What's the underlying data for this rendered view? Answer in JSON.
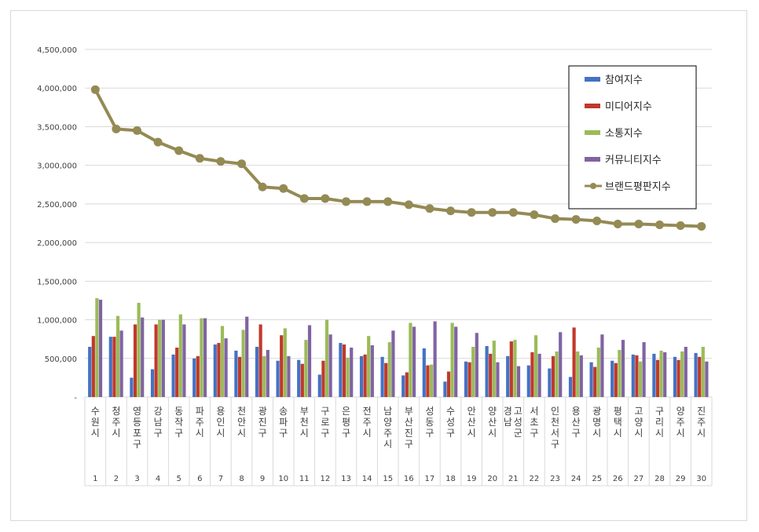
{
  "chart_data": {
    "type": "bar",
    "title": "",
    "xlabel": "",
    "ylabel": "",
    "ylim": [
      0,
      4500000
    ],
    "yticks": [
      0,
      500000,
      1000000,
      1500000,
      2000000,
      2500000,
      3000000,
      3500000,
      4000000,
      4500000
    ],
    "ytick_labels": [
      "-",
      "500,000",
      "1,000,000",
      "1,500,000",
      "2,000,000",
      "2,500,000",
      "3,000,000",
      "3,500,000",
      "4,000,000",
      "4,500,000"
    ],
    "grid": true,
    "legend_position": "top-right",
    "ranks": [
      "1",
      "2",
      "3",
      "4",
      "5",
      "6",
      "7",
      "8",
      "9",
      "10",
      "11",
      "12",
      "13",
      "14",
      "15",
      "16",
      "17",
      "18",
      "19",
      "20",
      "21",
      "22",
      "23",
      "24",
      "25",
      "26",
      "27",
      "28",
      "29",
      "30"
    ],
    "categories": [
      "수원시",
      "청주시",
      "영등포구",
      "강남구",
      "동작구",
      "파주시",
      "용인시",
      "천안시",
      "광진구",
      "송파구",
      "부천시",
      "구로구",
      "은평구",
      "전주시",
      "남양주시",
      "부산진구",
      "성동구",
      "수성구",
      "안산시",
      "양산시",
      "고성군경남",
      "서초구",
      "인천서구",
      "용산구",
      "광명시",
      "평택시",
      "고양시",
      "구리시",
      "양주시",
      "진주시"
    ],
    "series": [
      {
        "name": "참여지수",
        "type": "bar",
        "color": "#4472c4",
        "values": [
          650000,
          780000,
          250000,
          360000,
          550000,
          500000,
          680000,
          600000,
          650000,
          470000,
          480000,
          290000,
          700000,
          530000,
          520000,
          280000,
          630000,
          200000,
          460000,
          660000,
          530000,
          410000,
          370000,
          260000,
          450000,
          470000,
          550000,
          560000,
          520000,
          570000
        ]
      },
      {
        "name": "미디어지수",
        "type": "bar",
        "color": "#c0392b",
        "values": [
          790000,
          780000,
          940000,
          940000,
          640000,
          530000,
          700000,
          520000,
          940000,
          800000,
          430000,
          470000,
          680000,
          550000,
          440000,
          320000,
          410000,
          330000,
          450000,
          560000,
          720000,
          580000,
          530000,
          900000,
          390000,
          440000,
          540000,
          480000,
          480000,
          520000
        ]
      },
      {
        "name": "소통지수",
        "type": "bar",
        "color": "#9bbb59",
        "values": [
          1280000,
          1050000,
          1220000,
          1000000,
          1070000,
          1020000,
          920000,
          870000,
          530000,
          890000,
          740000,
          1000000,
          510000,
          790000,
          710000,
          960000,
          420000,
          960000,
          650000,
          730000,
          740000,
          800000,
          590000,
          590000,
          640000,
          610000,
          460000,
          600000,
          590000,
          650000
        ]
      },
      {
        "name": "커뮤니티지수",
        "type": "bar",
        "color": "#8064a2",
        "values": [
          1260000,
          860000,
          1030000,
          1000000,
          940000,
          1020000,
          760000,
          1040000,
          610000,
          530000,
          930000,
          810000,
          640000,
          670000,
          860000,
          910000,
          980000,
          910000,
          830000,
          450000,
          400000,
          560000,
          840000,
          540000,
          810000,
          740000,
          710000,
          580000,
          650000,
          460000
        ]
      },
      {
        "name": "브랜드평판지수",
        "type": "line",
        "color": "#948a54",
        "values": [
          3980000,
          3470000,
          3450000,
          3300000,
          3190000,
          3090000,
          3050000,
          3020000,
          2720000,
          2700000,
          2570000,
          2570000,
          2530000,
          2530000,
          2530000,
          2490000,
          2440000,
          2410000,
          2390000,
          2390000,
          2390000,
          2360000,
          2310000,
          2300000,
          2280000,
          2240000,
          2240000,
          2230000,
          2220000,
          2210000
        ]
      }
    ]
  }
}
